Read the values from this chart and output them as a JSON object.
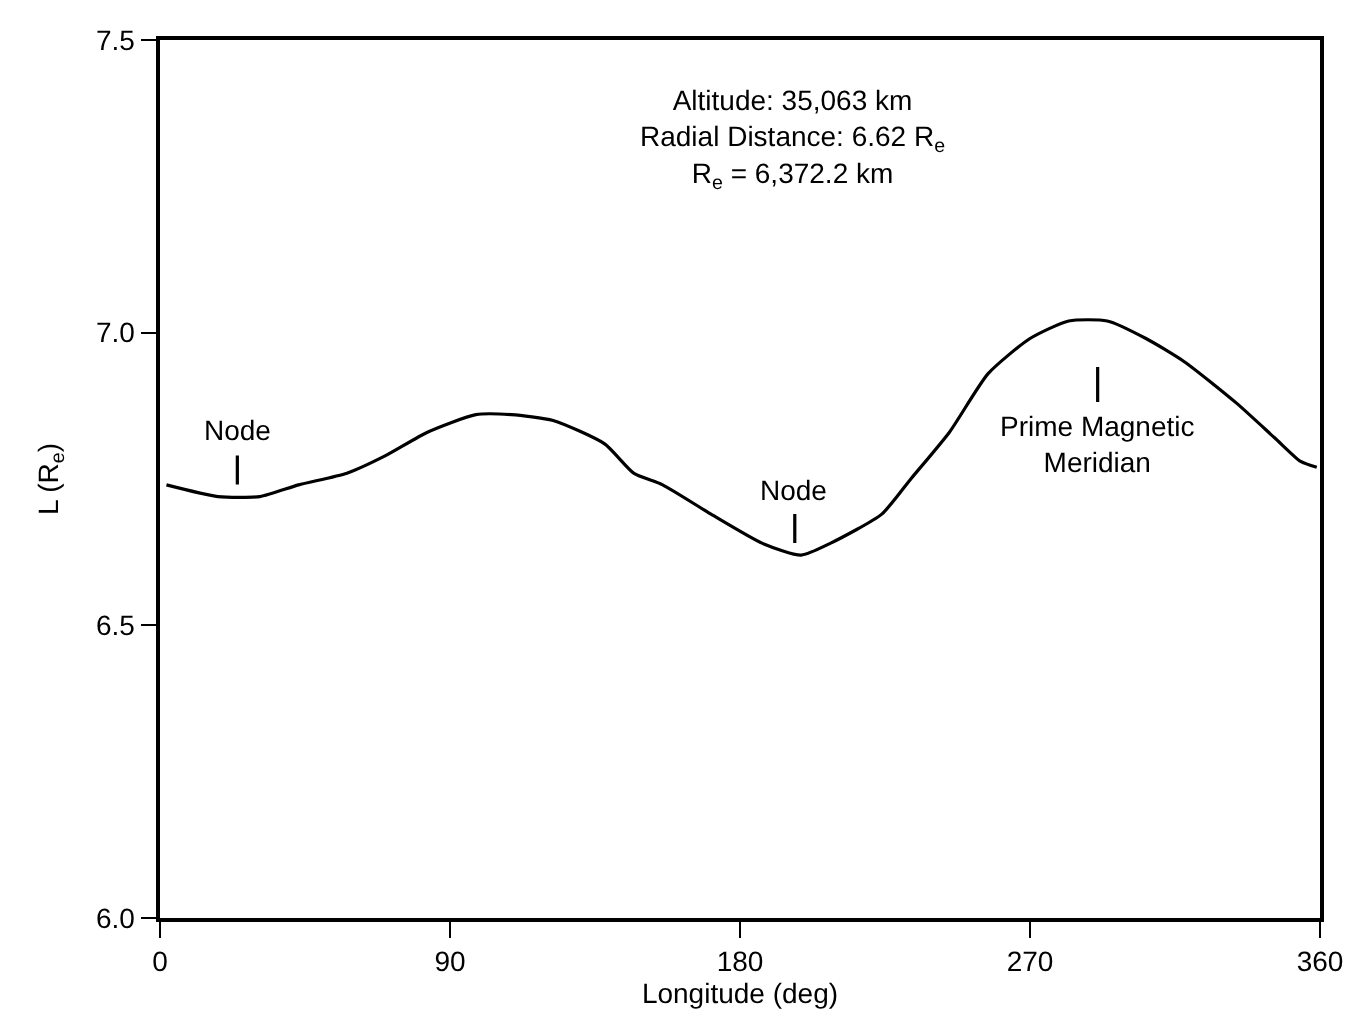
{
  "chart_data": {
    "type": "line",
    "xlabel": "Longitude (deg)",
    "ylabel": "L (R$_{e}$)",
    "xlim": [
      0,
      360
    ],
    "xticks": [
      0,
      90,
      180,
      270,
      360
    ],
    "ylim": [
      6.0,
      7.5
    ],
    "yticks": [
      {
        "value": 6.0,
        "label": "6.0"
      },
      {
        "value": 6.5,
        "label": "6.5"
      },
      {
        "value": 7.0,
        "label": "7.0"
      },
      {
        "value": 7.5,
        "label": "7.5"
      }
    ],
    "series": [
      {
        "color": "#000000",
        "x": [
          2,
          18,
          31,
          43,
          58,
          70,
          83,
          98,
          109,
          122,
          138,
          147,
          156,
          171,
          187,
          199,
          208,
          224,
          233,
          245,
          257,
          270,
          282,
          294,
          306,
          318,
          334,
          346,
          354,
          359
        ],
        "values": [
          6.74,
          6.72,
          6.72,
          6.74,
          6.76,
          6.79,
          6.83,
          6.86,
          6.86,
          6.85,
          6.81,
          6.76,
          6.74,
          6.69,
          6.64,
          6.62,
          6.64,
          6.69,
          6.75,
          6.83,
          6.93,
          6.99,
          7.02,
          7.02,
          6.99,
          6.95,
          6.88,
          6.82,
          6.78,
          6.77
        ]
      }
    ],
    "annotations": [
      "Altitude: 35,063 km\nRadial Distance: 6.62 R$_{e}$\nR$_{e}$ = 6,372.2 km",
      {
        "text": "Node",
        "x": 24,
        "y": 6.72
      },
      {
        "text": "Node",
        "x": 197,
        "y": 6.62
      },
      {
        "text": "Prime Magnetic\nMeridian",
        "x": 291,
        "y": 7.02
      }
    ]
  }
}
